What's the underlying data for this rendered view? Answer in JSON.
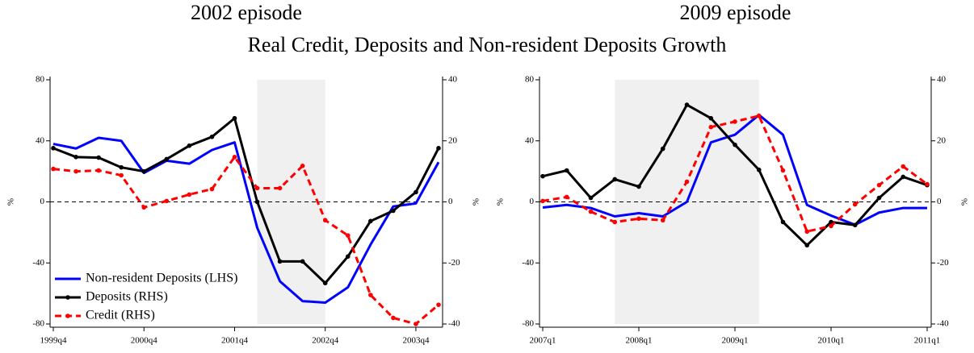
{
  "title": "Real Credit, Deposits and Non-resident Deposits Growth",
  "chart_data": [
    {
      "type": "line",
      "title": "2002 episode",
      "categories": [
        "1999q4",
        null,
        null,
        null,
        "2000q4",
        null,
        null,
        null,
        "2001q4",
        null,
        null,
        null,
        "2002q4",
        null,
        null,
        null,
        "2003q4",
        null
      ],
      "ylabel": "%",
      "y2label": "%",
      "ylim": [
        -80,
        80
      ],
      "yticks": [
        -80,
        -40,
        0,
        40,
        80
      ],
      "y2lim": [
        -40,
        40
      ],
      "y2ticks": [
        -40,
        -20,
        0,
        20,
        40
      ],
      "shade": [
        9,
        12
      ],
      "zero_line": true,
      "legend": "lower left",
      "series": [
        {
          "name": "Non-resident Deposits (LHS)",
          "color": "#0000ff",
          "axis": "y",
          "dash": false,
          "marker": false,
          "values": [
            38,
            35,
            42,
            40,
            19,
            27,
            25,
            34,
            39,
            -17,
            -52,
            -65,
            -66,
            -56,
            -28,
            -3,
            -1,
            26
          ]
        },
        {
          "name": "Deposits (RHS)",
          "color": "#000000",
          "axis": "y2",
          "dash": false,
          "marker": true,
          "values": [
            17.6,
            14.7,
            14.5,
            11.3,
            10,
            14,
            18.4,
            21.3,
            27.4,
            0,
            -19.5,
            -19.5,
            -26.6,
            -17.9,
            -6.3,
            -2.9,
            3.2,
            17.6
          ]
        },
        {
          "name": "Credit (RHS)",
          "color": "#ff0000",
          "axis": "y2",
          "dash": true,
          "marker": true,
          "values": [
            10.8,
            10,
            10.3,
            8.7,
            -1.8,
            0.3,
            2.4,
            4.2,
            14.7,
            4.5,
            4.5,
            11.8,
            -6,
            -11,
            -30.5,
            -38,
            -40,
            -33.7
          ]
        }
      ]
    },
    {
      "type": "line",
      "title": "2009 episode",
      "categories": [
        "2007q1",
        null,
        null,
        null,
        "2008q1",
        null,
        null,
        null,
        "2009q1",
        null,
        null,
        null,
        "2010q1",
        null,
        null,
        null,
        "2011q1"
      ],
      "ylabel": "%",
      "y2label": "%",
      "ylim": [
        -80,
        80
      ],
      "yticks": [
        -80,
        -40,
        0,
        40,
        80
      ],
      "y2lim": [
        -40,
        40
      ],
      "y2ticks": [
        -40,
        -20,
        0,
        20,
        40
      ],
      "shade": [
        3,
        9
      ],
      "zero_line": true,
      "series": [
        {
          "color": "#0000ff",
          "axis": "y",
          "dash": false,
          "marker": false,
          "values": [
            -3.7,
            -2,
            -4,
            -9.5,
            -7.4,
            -9.5,
            0,
            39,
            44,
            57,
            44,
            -2,
            -9,
            -15,
            -7,
            -4,
            -4
          ]
        },
        {
          "color": "#000000",
          "axis": "y2",
          "dash": false,
          "marker": true,
          "values": [
            8.4,
            10.3,
            1.3,
            7.4,
            5,
            17.4,
            31.8,
            27.4,
            18.7,
            10.5,
            -6.6,
            -14.2,
            -6.6,
            -7.6,
            1.3,
            8.2,
            5.5
          ]
        },
        {
          "color": "#ff0000",
          "axis": "y2",
          "dash": true,
          "marker": true,
          "values": [
            0.3,
            1.6,
            -3.2,
            -6.6,
            -5.5,
            -6,
            6.6,
            24.5,
            26.3,
            28.2,
            10.3,
            -9.7,
            -7.9,
            -0.8,
            5.5,
            11.6,
            5.8
          ]
        }
      ]
    }
  ]
}
